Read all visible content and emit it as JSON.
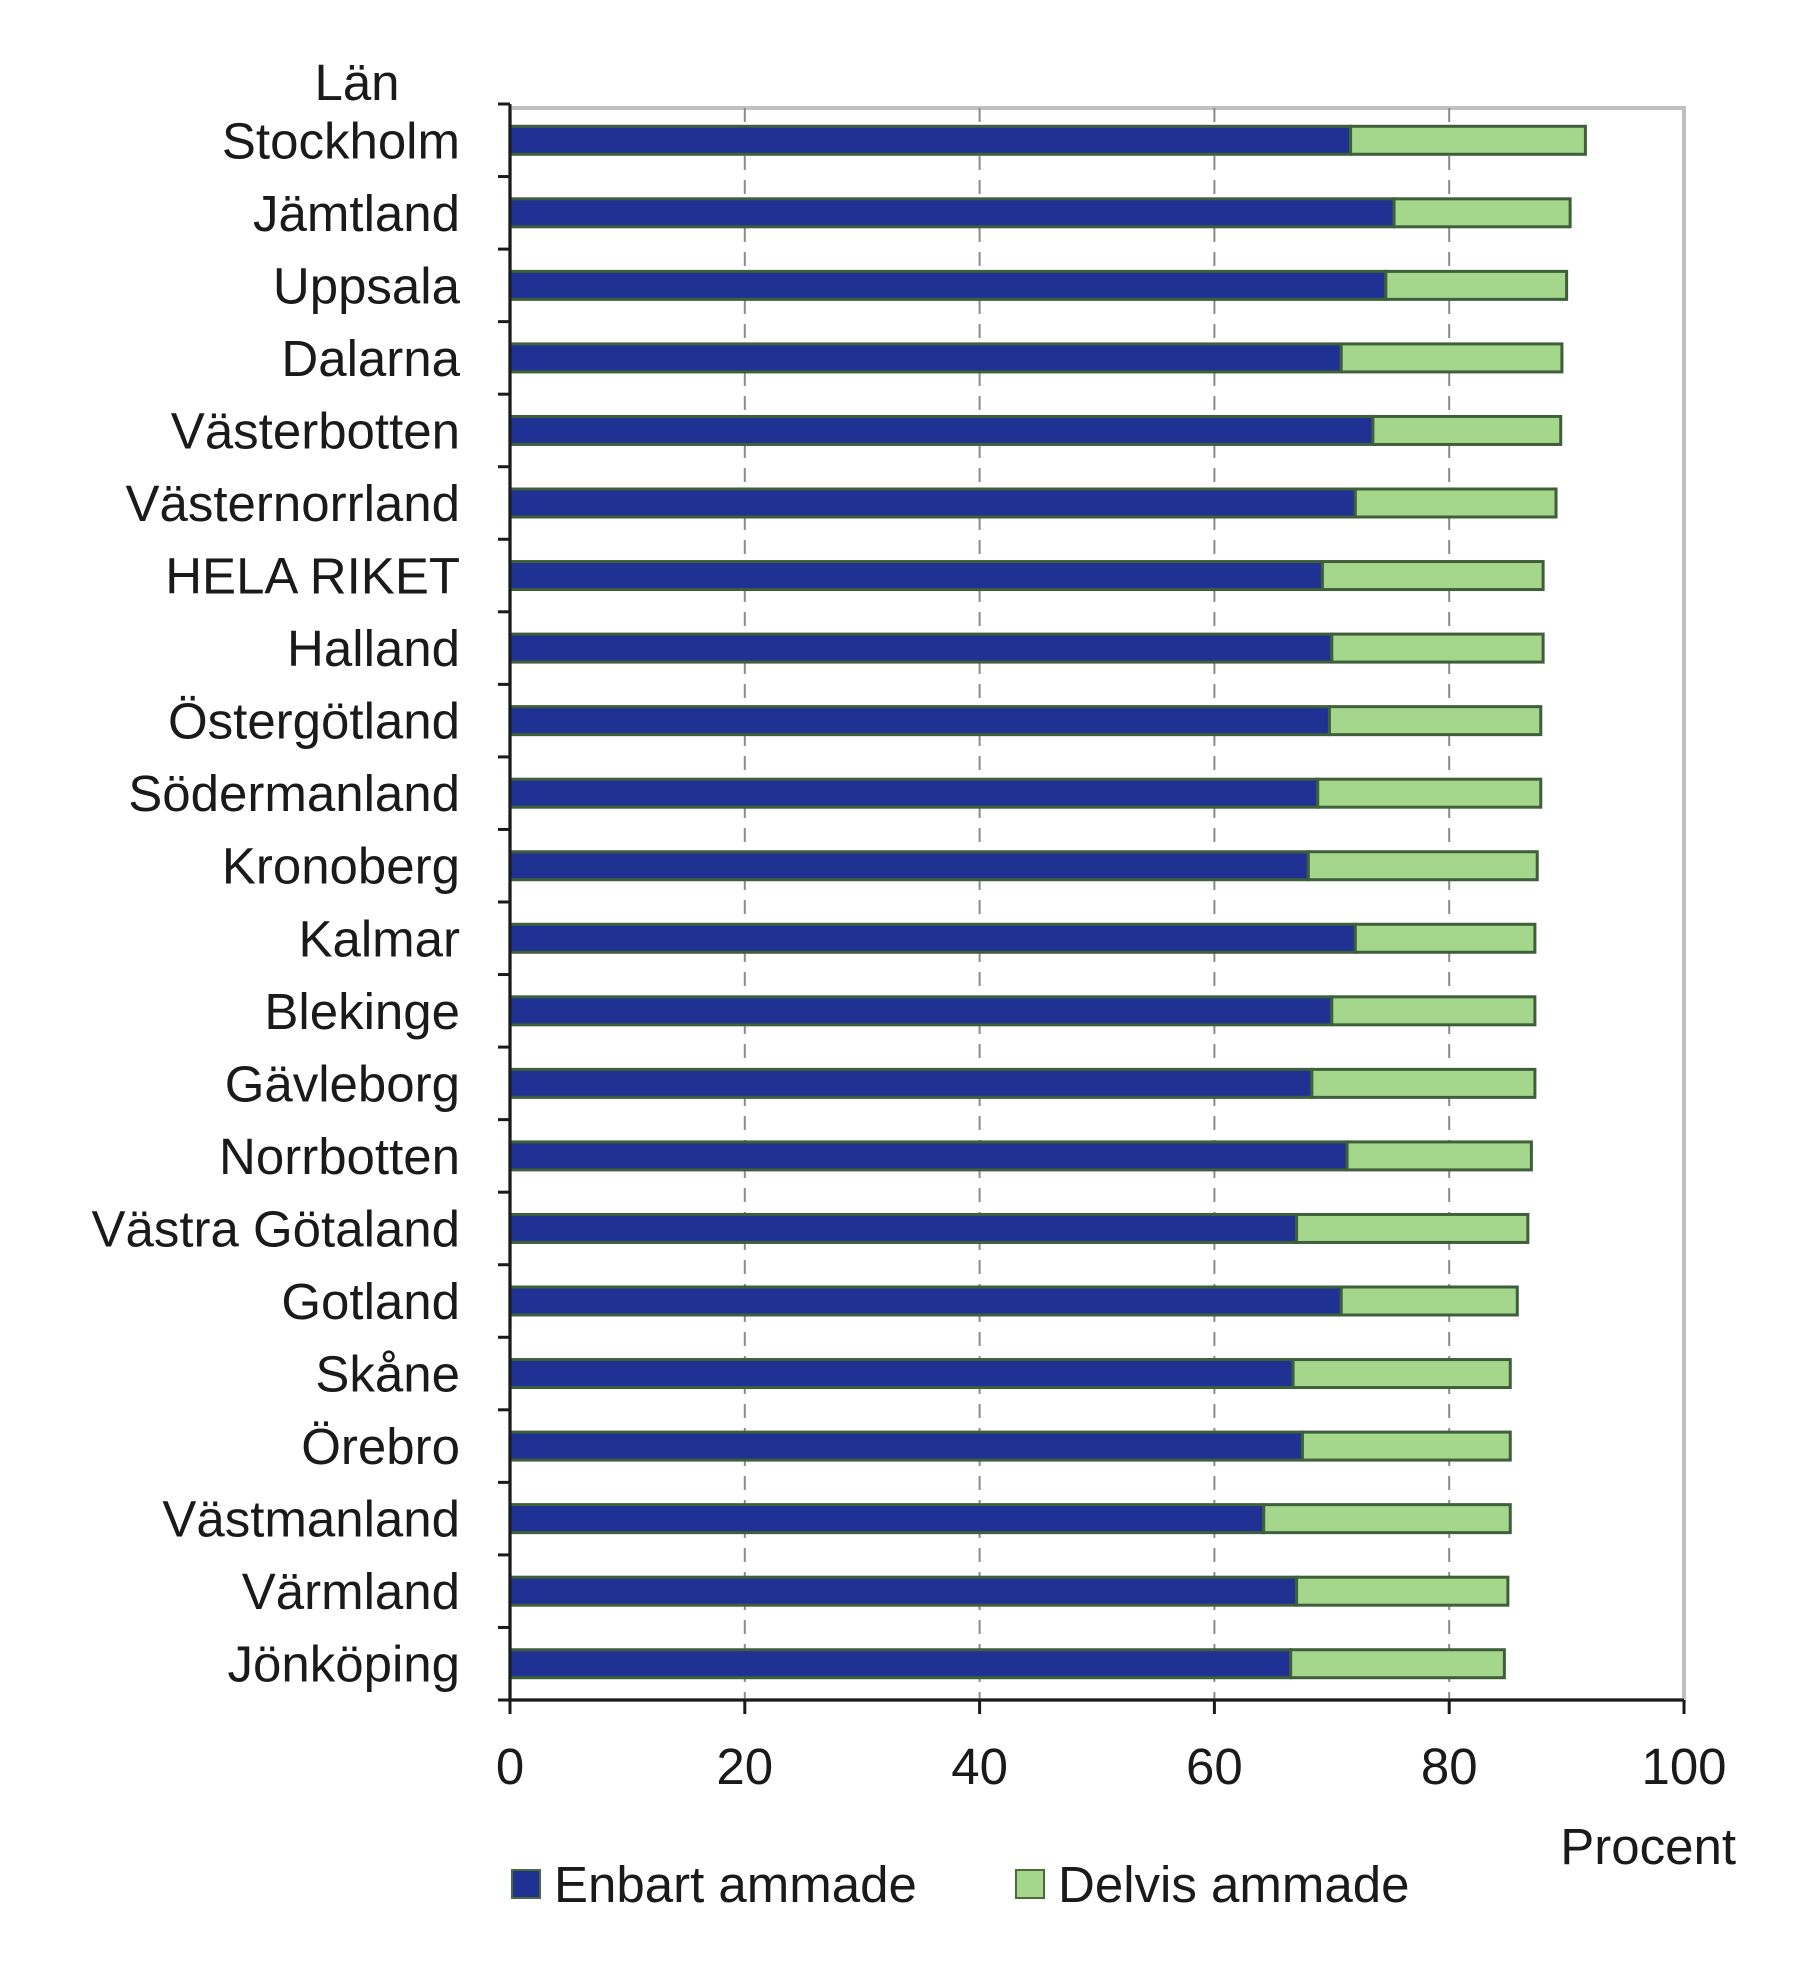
{
  "chart_data": {
    "type": "bar",
    "orientation": "horizontal",
    "stacked": true,
    "title": "",
    "ylabel": "Län",
    "xlabel": "Procent",
    "xlim": [
      0,
      100
    ],
    "xticks": [
      0,
      20,
      40,
      60,
      80,
      100
    ],
    "grid": "vertical dashed",
    "legend_position": "bottom",
    "categories": [
      "Stockholm",
      "Jämtland",
      "Uppsala",
      "Dalarna",
      "Västerbotten",
      "Västernorrland",
      "HELA RIKET",
      "Halland",
      "Östergötland",
      "Södermanland",
      "Kronoberg",
      "Kalmar",
      "Blekinge",
      "Gävleborg",
      "Norrbotten",
      "Västra Götaland",
      "Gotland",
      "Skåne",
      "Örebro",
      "Västmanland",
      "Värmland",
      "Jönköping"
    ],
    "series": [
      {
        "name": "Enbart ammade",
        "color": "#1f3294",
        "values": [
          71.6,
          75.3,
          74.6,
          70.8,
          73.5,
          72.0,
          69.2,
          70.0,
          69.8,
          68.8,
          68.0,
          72.0,
          70.0,
          68.3,
          71.3,
          67.0,
          70.8,
          66.7,
          67.5,
          64.2,
          67.0,
          66.5
        ]
      },
      {
        "name": "Delvis ammade",
        "color": "#a4d68c",
        "values": [
          20.0,
          15.0,
          15.4,
          18.8,
          16.0,
          17.1,
          18.8,
          18.0,
          18.0,
          19.0,
          19.5,
          15.3,
          17.3,
          19.0,
          15.7,
          19.7,
          15.0,
          18.5,
          17.7,
          21.0,
          18.0,
          18.2
        ]
      }
    ]
  }
}
